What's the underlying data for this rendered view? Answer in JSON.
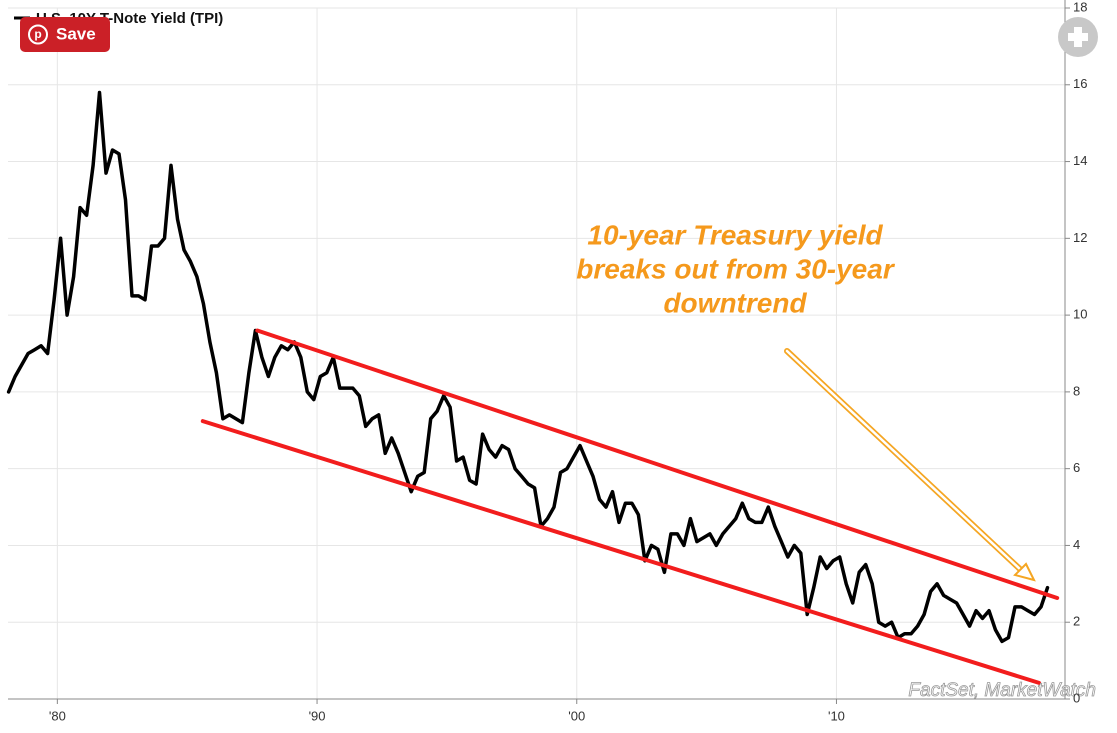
{
  "chart_data": {
    "type": "line",
    "xlim": [
      1978.1,
      2018.8
    ],
    "xticks": [
      {
        "value": 1980,
        "label": "'80"
      },
      {
        "value": 1990,
        "label": "'90"
      },
      {
        "value": 2000,
        "label": "'00"
      },
      {
        "value": 2010,
        "label": "'10"
      }
    ],
    "ylim": [
      0,
      18
    ],
    "yticks": [
      0,
      2,
      4,
      6,
      8,
      10,
      12,
      14,
      16,
      18
    ],
    "grid": true,
    "series": [
      {
        "name": "U.S. 10Y T-Note Yield (TPI)",
        "color": "#000000",
        "x": [
          1978.125,
          1978.375,
          1978.625,
          1978.875,
          1979.125,
          1979.375,
          1979.625,
          1979.875,
          1980.125,
          1980.375,
          1980.625,
          1980.875,
          1981.125,
          1981.375,
          1981.625,
          1981.875,
          1982.125,
          1982.375,
          1982.625,
          1982.875,
          1983.125,
          1983.375,
          1983.625,
          1983.875,
          1984.125,
          1984.375,
          1984.625,
          1984.875,
          1985.125,
          1985.375,
          1985.625,
          1985.875,
          1986.125,
          1986.375,
          1986.625,
          1986.875,
          1987.125,
          1987.375,
          1987.625,
          1987.875,
          1988.125,
          1988.375,
          1988.625,
          1988.875,
          1989.125,
          1989.375,
          1989.625,
          1989.875,
          1990.125,
          1990.375,
          1990.625,
          1990.875,
          1991.125,
          1991.375,
          1991.625,
          1991.875,
          1992.125,
          1992.375,
          1992.625,
          1992.875,
          1993.125,
          1993.375,
          1993.625,
          1993.875,
          1994.125,
          1994.375,
          1994.625,
          1994.875,
          1995.125,
          1995.375,
          1995.625,
          1995.875,
          1996.125,
          1996.375,
          1996.625,
          1996.875,
          1997.125,
          1997.375,
          1997.625,
          1997.875,
          1998.125,
          1998.375,
          1998.625,
          1998.875,
          1999.125,
          1999.375,
          1999.625,
          1999.875,
          2000.125,
          2000.375,
          2000.625,
          2000.875,
          2001.125,
          2001.375,
          2001.625,
          2001.875,
          2002.125,
          2002.375,
          2002.625,
          2002.875,
          2003.125,
          2003.375,
          2003.625,
          2003.875,
          2004.125,
          2004.375,
          2004.625,
          2004.875,
          2005.125,
          2005.375,
          2005.625,
          2005.875,
          2006.125,
          2006.375,
          2006.625,
          2006.875,
          2007.125,
          2007.375,
          2007.625,
          2007.875,
          2008.125,
          2008.375,
          2008.625,
          2008.875,
          2009.125,
          2009.375,
          2009.625,
          2009.875,
          2010.125,
          2010.375,
          2010.625,
          2010.875,
          2011.125,
          2011.375,
          2011.625,
          2011.875,
          2012.125,
          2012.375,
          2012.625,
          2012.875,
          2013.125,
          2013.375,
          2013.625,
          2013.875,
          2014.125,
          2014.375,
          2014.625,
          2014.875,
          2015.125,
          2015.375,
          2015.625,
          2015.875,
          2016.125,
          2016.375,
          2016.625,
          2016.875,
          2017.125,
          2017.375,
          2017.625,
          2017.875,
          2018.125
        ],
        "values": [
          8.0,
          8.4,
          8.7,
          9.0,
          9.1,
          9.2,
          9.0,
          10.4,
          12.0,
          10.0,
          11.0,
          12.8,
          12.6,
          13.9,
          15.8,
          13.7,
          14.3,
          14.2,
          13.0,
          10.5,
          10.5,
          10.4,
          11.8,
          11.8,
          12.0,
          13.9,
          12.5,
          11.7,
          11.4,
          11.0,
          10.3,
          9.3,
          8.5,
          7.3,
          7.4,
          7.3,
          7.2,
          8.5,
          9.6,
          8.9,
          8.4,
          8.9,
          9.2,
          9.1,
          9.3,
          8.9,
          8.0,
          7.8,
          8.4,
          8.5,
          8.9,
          8.1,
          8.1,
          8.1,
          7.9,
          7.1,
          7.3,
          7.4,
          6.4,
          6.8,
          6.4,
          5.9,
          5.4,
          5.8,
          5.9,
          7.3,
          7.5,
          7.9,
          7.6,
          6.2,
          6.3,
          5.7,
          5.6,
          6.9,
          6.5,
          6.3,
          6.6,
          6.5,
          6.0,
          5.8,
          5.6,
          5.5,
          4.5,
          4.7,
          5.0,
          5.9,
          6.0,
          6.3,
          6.6,
          6.2,
          5.8,
          5.2,
          5.0,
          5.4,
          4.6,
          5.1,
          5.1,
          4.8,
          3.6,
          4.0,
          3.9,
          3.3,
          4.3,
          4.3,
          4.0,
          4.7,
          4.1,
          4.2,
          4.3,
          4.0,
          4.3,
          4.5,
          4.7,
          5.1,
          4.7,
          4.6,
          4.6,
          5.0,
          4.5,
          4.1,
          3.7,
          4.0,
          3.8,
          2.2,
          2.9,
          3.7,
          3.4,
          3.6,
          3.7,
          3.0,
          2.5,
          3.3,
          3.5,
          3.0,
          2.0,
          1.9,
          2.0,
          1.6,
          1.7,
          1.7,
          1.9,
          2.2,
          2.8,
          3.0,
          2.7,
          2.6,
          2.5,
          2.2,
          1.9,
          2.3,
          2.1,
          2.3,
          1.8,
          1.5,
          1.6,
          2.4,
          2.4,
          2.3,
          2.2,
          2.4,
          2.9
        ]
      }
    ],
    "trend_lines": [
      {
        "color": "#f21d1d",
        "x": [
          1987.7,
          2018.5
        ],
        "values": [
          9.6,
          2.63
        ]
      },
      {
        "color": "#f21d1d",
        "x": [
          1985.6,
          2017.8
        ],
        "values": [
          7.24,
          0.42
        ]
      }
    ],
    "annotation": [
      "10-year Treasury yield",
      "breaks out from 30-year",
      "downtrend"
    ],
    "annotation_color": "#f5991c",
    "source": "FactSet, MarketWatch"
  },
  "ui": {
    "save_button": "Save"
  }
}
